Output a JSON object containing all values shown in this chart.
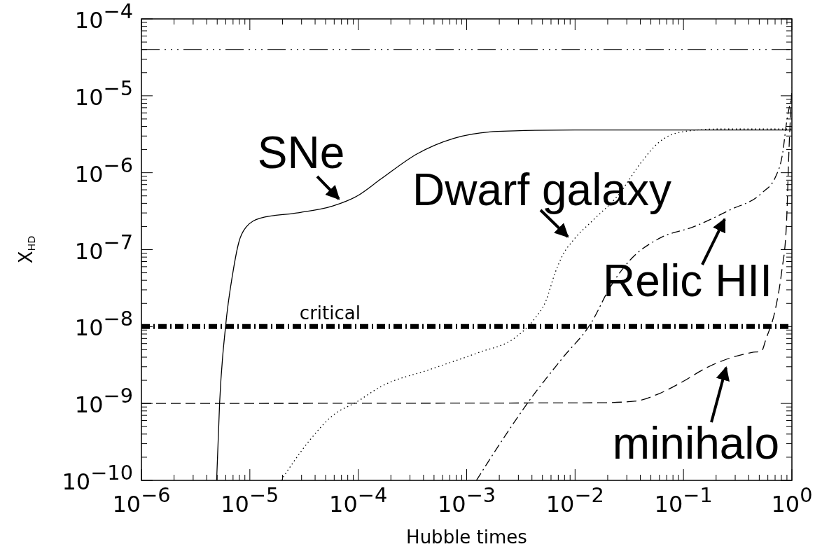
{
  "chart_data": {
    "type": "line",
    "xlabel": "Hubble times",
    "ylabel": "X$_{HD}$",
    "log": "xy",
    "grid": false,
    "xlim": [
      1e-06,
      1
    ],
    "ylim": [
      1e-10,
      0.0001
    ],
    "xticks": [
      {
        "value": 1e-06,
        "label": "10$^{−6}$"
      },
      {
        "value": 2e-06,
        "label": null
      },
      {
        "value": 3e-06,
        "label": null
      },
      {
        "value": 4e-06,
        "label": null
      },
      {
        "value": 5e-06,
        "label": null
      },
      {
        "value": 6e-06,
        "label": null
      },
      {
        "value": 7e-06,
        "label": null
      },
      {
        "value": 8e-06,
        "label": null
      },
      {
        "value": 9e-06,
        "label": null
      },
      {
        "value": 1e-05,
        "label": "10$^{−5}$"
      },
      {
        "value": 2e-05,
        "label": null
      },
      {
        "value": 3e-05,
        "label": null
      },
      {
        "value": 4e-05,
        "label": null
      },
      {
        "value": 5e-05,
        "label": null
      },
      {
        "value": 6e-05,
        "label": null
      },
      {
        "value": 7e-05,
        "label": null
      },
      {
        "value": 8e-05,
        "label": null
      },
      {
        "value": 9e-05,
        "label": null
      },
      {
        "value": 0.0001,
        "label": "10$^{−4}$"
      },
      {
        "value": 0.0002,
        "label": null
      },
      {
        "value": 0.0003,
        "label": null
      },
      {
        "value": 0.0004,
        "label": null
      },
      {
        "value": 0.0005,
        "label": null
      },
      {
        "value": 0.0006,
        "label": null
      },
      {
        "value": 0.0007,
        "label": null
      },
      {
        "value": 0.0008,
        "label": null
      },
      {
        "value": 0.0009,
        "label": null
      },
      {
        "value": 0.001,
        "label": "10$^{−3}$"
      },
      {
        "value": 0.002,
        "label": null
      },
      {
        "value": 0.003,
        "label": null
      },
      {
        "value": 0.004,
        "label": null
      },
      {
        "value": 0.005,
        "label": null
      },
      {
        "value": 0.006,
        "label": null
      },
      {
        "value": 0.007,
        "label": null
      },
      {
        "value": 0.008,
        "label": null
      },
      {
        "value": 0.009,
        "label": null
      },
      {
        "value": 0.01,
        "label": "10$^{−2}$"
      },
      {
        "value": 0.02,
        "label": null
      },
      {
        "value": 0.03,
        "label": null
      },
      {
        "value": 0.04,
        "label": null
      },
      {
        "value": 0.05,
        "label": null
      },
      {
        "value": 0.06,
        "label": null
      },
      {
        "value": 0.07,
        "label": null
      },
      {
        "value": 0.08,
        "label": null
      },
      {
        "value": 0.09,
        "label": null
      },
      {
        "value": 0.1,
        "label": "10$^{−1}$"
      },
      {
        "value": 0.2,
        "label": null
      },
      {
        "value": 0.3,
        "label": null
      },
      {
        "value": 0.4,
        "label": null
      },
      {
        "value": 0.5,
        "label": null
      },
      {
        "value": 0.6,
        "label": null
      },
      {
        "value": 0.7,
        "label": null
      },
      {
        "value": 0.8,
        "label": null
      },
      {
        "value": 0.9,
        "label": null
      },
      {
        "value": 1,
        "label": "10$^{0}$"
      }
    ],
    "yticks": [
      {
        "value": 1e-10,
        "label": "10$^{−10}$"
      },
      {
        "value": 2e-10,
        "label": null
      },
      {
        "value": 3e-10,
        "label": null
      },
      {
        "value": 4e-10,
        "label": null
      },
      {
        "value": 5e-10,
        "label": null
      },
      {
        "value": 6e-10,
        "label": null
      },
      {
        "value": 7e-10,
        "label": null
      },
      {
        "value": 8e-10,
        "label": null
      },
      {
        "value": 9e-10,
        "label": null
      },
      {
        "value": 1e-09,
        "label": "10$^{−9}$"
      },
      {
        "value": 2e-09,
        "label": null
      },
      {
        "value": 3e-09,
        "label": null
      },
      {
        "value": 4e-09,
        "label": null
      },
      {
        "value": 5e-09,
        "label": null
      },
      {
        "value": 6e-09,
        "label": null
      },
      {
        "value": 7e-09,
        "label": null
      },
      {
        "value": 8e-09,
        "label": null
      },
      {
        "value": 9e-09,
        "label": null
      },
      {
        "value": 1e-08,
        "label": "10$^{−8}$"
      },
      {
        "value": 2e-08,
        "label": null
      },
      {
        "value": 3e-08,
        "label": null
      },
      {
        "value": 4e-08,
        "label": null
      },
      {
        "value": 5e-08,
        "label": null
      },
      {
        "value": 6e-08,
        "label": null
      },
      {
        "value": 7e-08,
        "label": null
      },
      {
        "value": 8e-08,
        "label": null
      },
      {
        "value": 9e-08,
        "label": null
      },
      {
        "value": 1e-07,
        "label": "10$^{−7}$"
      },
      {
        "value": 2e-07,
        "label": null
      },
      {
        "value": 3e-07,
        "label": null
      },
      {
        "value": 4e-07,
        "label": null
      },
      {
        "value": 5e-07,
        "label": null
      },
      {
        "value": 6e-07,
        "label": null
      },
      {
        "value": 7e-07,
        "label": null
      },
      {
        "value": 8e-07,
        "label": null
      },
      {
        "value": 9e-07,
        "label": null
      },
      {
        "value": 1e-06,
        "label": "10$^{−6}$"
      },
      {
        "value": 2e-06,
        "label": null
      },
      {
        "value": 3e-06,
        "label": null
      },
      {
        "value": 4e-06,
        "label": null
      },
      {
        "value": 5e-06,
        "label": null
      },
      {
        "value": 6e-06,
        "label": null
      },
      {
        "value": 7e-06,
        "label": null
      },
      {
        "value": 8e-06,
        "label": null
      },
      {
        "value": 9e-06,
        "label": null
      },
      {
        "value": 1e-05,
        "label": "10$^{−5}$"
      },
      {
        "value": 2e-05,
        "label": null
      },
      {
        "value": 3e-05,
        "label": null
      },
      {
        "value": 4e-05,
        "label": null
      },
      {
        "value": 5e-05,
        "label": null
      },
      {
        "value": 6e-05,
        "label": null
      },
      {
        "value": 7e-05,
        "label": null
      },
      {
        "value": 8e-05,
        "label": null
      },
      {
        "value": 9e-05,
        "label": null
      },
      {
        "value": 0.0001,
        "label": "10$^{−4}$"
      }
    ],
    "series": [
      {
        "color": "#000000",
        "line_style": "solid",
        "x": [
          4.94e-06,
          5.26e-06,
          5.97e-06,
          6.97e-06,
          7.93e-06,
          9.2e-06,
          1.26e-05,
          2.7e-05,
          5.83e-05,
          9.8e-05,
          0.000162,
          0.000349,
          0.00076,
          0.00163,
          0.00277,
          0.0099,
          1
        ],
        "values": [
          1e-10,
          1e-09,
          1e-08,
          5e-08,
          1.26e-07,
          1.95e-07,
          2.57e-07,
          3e-07,
          3.7e-07,
          5e-07,
          8.3e-07,
          1.76e-06,
          2.8e-06,
          3.4e-06,
          3.5e-06,
          3.6e-06,
          3.6e-06
        ]
      },
      {
        "color": "#000000",
        "line_style": "dotted",
        "x": [
          1.94e-05,
          3.49e-05,
          5.83e-05,
          9.7e-05,
          0.000162,
          0.000452,
          0.00129,
          0.00277,
          0.00417,
          0.00537,
          0.00658,
          0.00766,
          0.00986,
          0.0148,
          0.0247,
          0.041,
          0.0586,
          0.097,
          0.209,
          1
        ],
        "values": [
          1e-10,
          3.2e-10,
          7e-10,
          1.05e-09,
          1.66e-09,
          2.75e-09,
          4.6e-09,
          7.1e-09,
          1.23e-08,
          2.14e-08,
          5.1e-08,
          8.4e-08,
          1.38e-07,
          2.45e-07,
          5e-07,
          1.38e-06,
          2.45e-06,
          3.4e-06,
          3.7e-06,
          3.7e-06
        ]
      },
      {
        "color": "#000000",
        "line_style": "dashdot",
        "x": [
          0.00123,
          0.00215,
          0.00375,
          0.00766,
          0.0141,
          0.0212,
          0.0318,
          0.0586,
          0.126,
          0.27,
          0.524,
          0.708,
          0.824,
          0.891,
          1
        ],
        "values": [
          1e-10,
          3.4e-10,
          1.07e-09,
          3.9e-09,
          1.12e-08,
          3.3e-08,
          7.2e-08,
          1.38e-07,
          2e-07,
          3.3e-07,
          5.4e-07,
          8.9e-07,
          1.84e-06,
          4.4e-06,
          1e-05
        ]
      },
      {
        "color": "#000000",
        "line_style": "dashed",
        "x": [
          1e-06,
          0.0164,
          0.0355,
          0.0586,
          0.097,
          0.162,
          0.269,
          0.427,
          0.525,
          0.575,
          0.708,
          0.804,
          0.891,
          0.938,
          1
        ],
        "values": [
          1e-09,
          1.02e-09,
          1.07e-09,
          1.33e-09,
          1.9e-09,
          2.9e-09,
          3.9e-09,
          4.6e-09,
          4.8e-09,
          6.8e-09,
          1.74e-08,
          5.1e-08,
          2.14e-07,
          1.82e-06,
          1.26e-05
        ]
      }
    ],
    "ref_lines": [
      {
        "axis": "y",
        "value": 4e-05,
        "line_style": "dashdotdotdot",
        "color": "#000000"
      },
      {
        "axis": "y",
        "value": 1e-08,
        "label": "critical",
        "line_style": "dashdot",
        "color": "#000000"
      }
    ],
    "annotations": [
      "SNe",
      "Dwarf galaxy",
      "Relic HII",
      "minihalo"
    ]
  }
}
